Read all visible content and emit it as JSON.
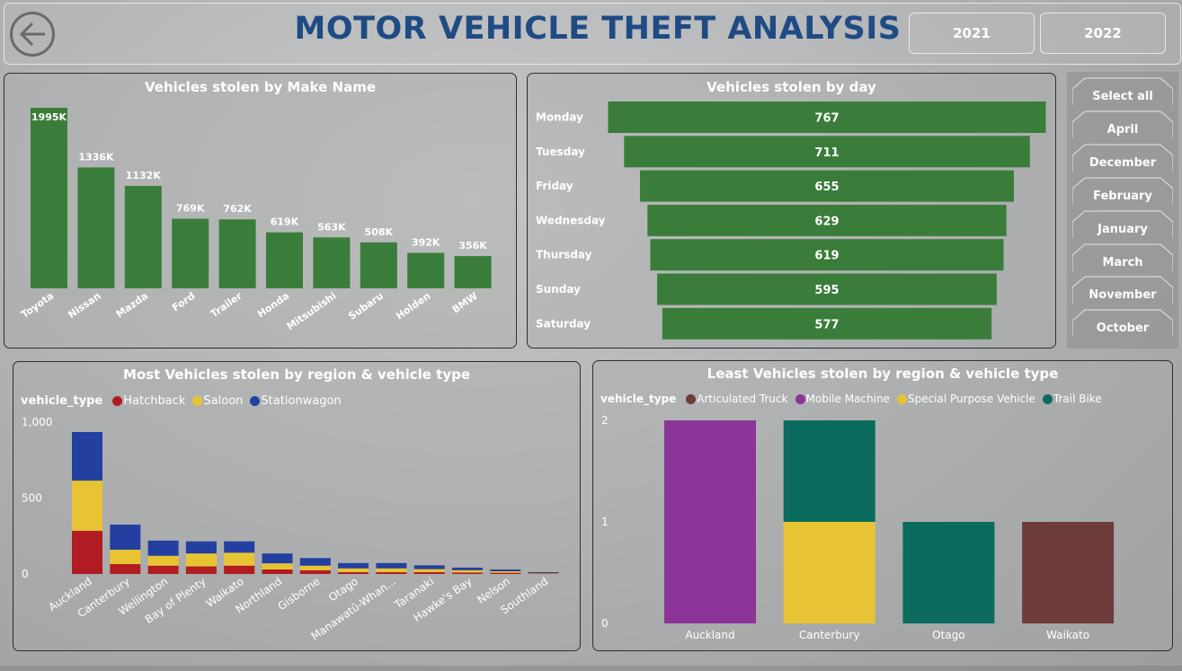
{
  "header": {
    "title": "MOTOR VEHICLE THEFT ANALYSIS",
    "year_buttons": [
      "2021",
      "2022"
    ]
  },
  "slicer": {
    "items": [
      "Select all",
      "April",
      "December",
      "February",
      "January",
      "March",
      "November",
      "October"
    ]
  },
  "colors": {
    "bar_green": "#3a7d3a",
    "title_blue": "#1f4b85",
    "hatchback": "#b01c22",
    "saloon": "#e8c435",
    "stationwagon": "#2340a0",
    "articulated_truck": "#6e3b3b",
    "mobile_machine": "#8a3597",
    "special_purpose_vehicle": "#e8c435",
    "trail_bike": "#0b6b5e"
  },
  "chart_data": [
    {
      "type": "bar",
      "title": "Vehicles stolen by Make Name",
      "categories": [
        "Toyota",
        "Nissan",
        "Mazda",
        "Ford",
        "Trailer",
        "Honda",
        "Mitsubishi",
        "Subaru",
        "Holden",
        "BMW"
      ],
      "values": [
        1995,
        1336,
        1132,
        769,
        762,
        619,
        563,
        508,
        392,
        356
      ],
      "labels": [
        "1995K",
        "1336K",
        "1132K",
        "769K",
        "762K",
        "619K",
        "563K",
        "508K",
        "392K",
        "356K"
      ],
      "ylim": [
        0,
        1995
      ]
    },
    {
      "type": "bar",
      "title": "Vehicles stolen by day",
      "orientation": "horizontal-funnel",
      "categories": [
        "Monday",
        "Tuesday",
        "Friday",
        "Wednesday",
        "Thursday",
        "Sunday",
        "Saturday"
      ],
      "values": [
        767,
        711,
        655,
        629,
        619,
        595,
        577
      ]
    },
    {
      "type": "bar",
      "stacked": true,
      "title": "Most Vehicles stolen by region & vehicle type",
      "legend_title": "vehicle_type",
      "categories": [
        "Auckland",
        "Canterbury",
        "Wellington",
        "Bay of Plenty",
        "Waikato",
        "Northland",
        "Gisborne",
        "Otago",
        "Manawatū-Whan...",
        "Taranaki",
        "Hawke's Bay",
        "Nelson",
        "Southland"
      ],
      "series": [
        {
          "name": "Hatchback",
          "values": [
            285,
            65,
            55,
            50,
            55,
            30,
            25,
            12,
            12,
            12,
            10,
            8,
            3
          ]
        },
        {
          "name": "Saloon",
          "values": [
            330,
            95,
            65,
            85,
            85,
            40,
            30,
            25,
            25,
            20,
            15,
            10,
            3
          ]
        },
        {
          "name": "Stationwagon",
          "values": [
            320,
            165,
            100,
            80,
            75,
            65,
            50,
            35,
            35,
            25,
            17,
            12,
            6
          ]
        }
      ],
      "yticks": [
        "1,000",
        "500",
        "0"
      ],
      "ylim": [
        0,
        1000
      ]
    },
    {
      "type": "bar",
      "stacked": true,
      "title": "Least Vehicles stolen by region & vehicle type",
      "legend_title": "vehicle_type",
      "categories": [
        "Auckland",
        "Canterbury",
        "Otago",
        "Waikato"
      ],
      "series": [
        {
          "name": "Articulated Truck",
          "values": [
            0,
            0,
            0,
            1
          ]
        },
        {
          "name": "Mobile Machine",
          "values": [
            2,
            0,
            0,
            0
          ]
        },
        {
          "name": "Special Purpose Vehicle",
          "values": [
            0,
            1,
            0,
            0
          ]
        },
        {
          "name": "Trail Bike",
          "values": [
            0,
            1,
            1,
            0
          ]
        }
      ],
      "yticks": [
        "2",
        "1",
        "0"
      ],
      "ylim": [
        0,
        2
      ]
    }
  ]
}
